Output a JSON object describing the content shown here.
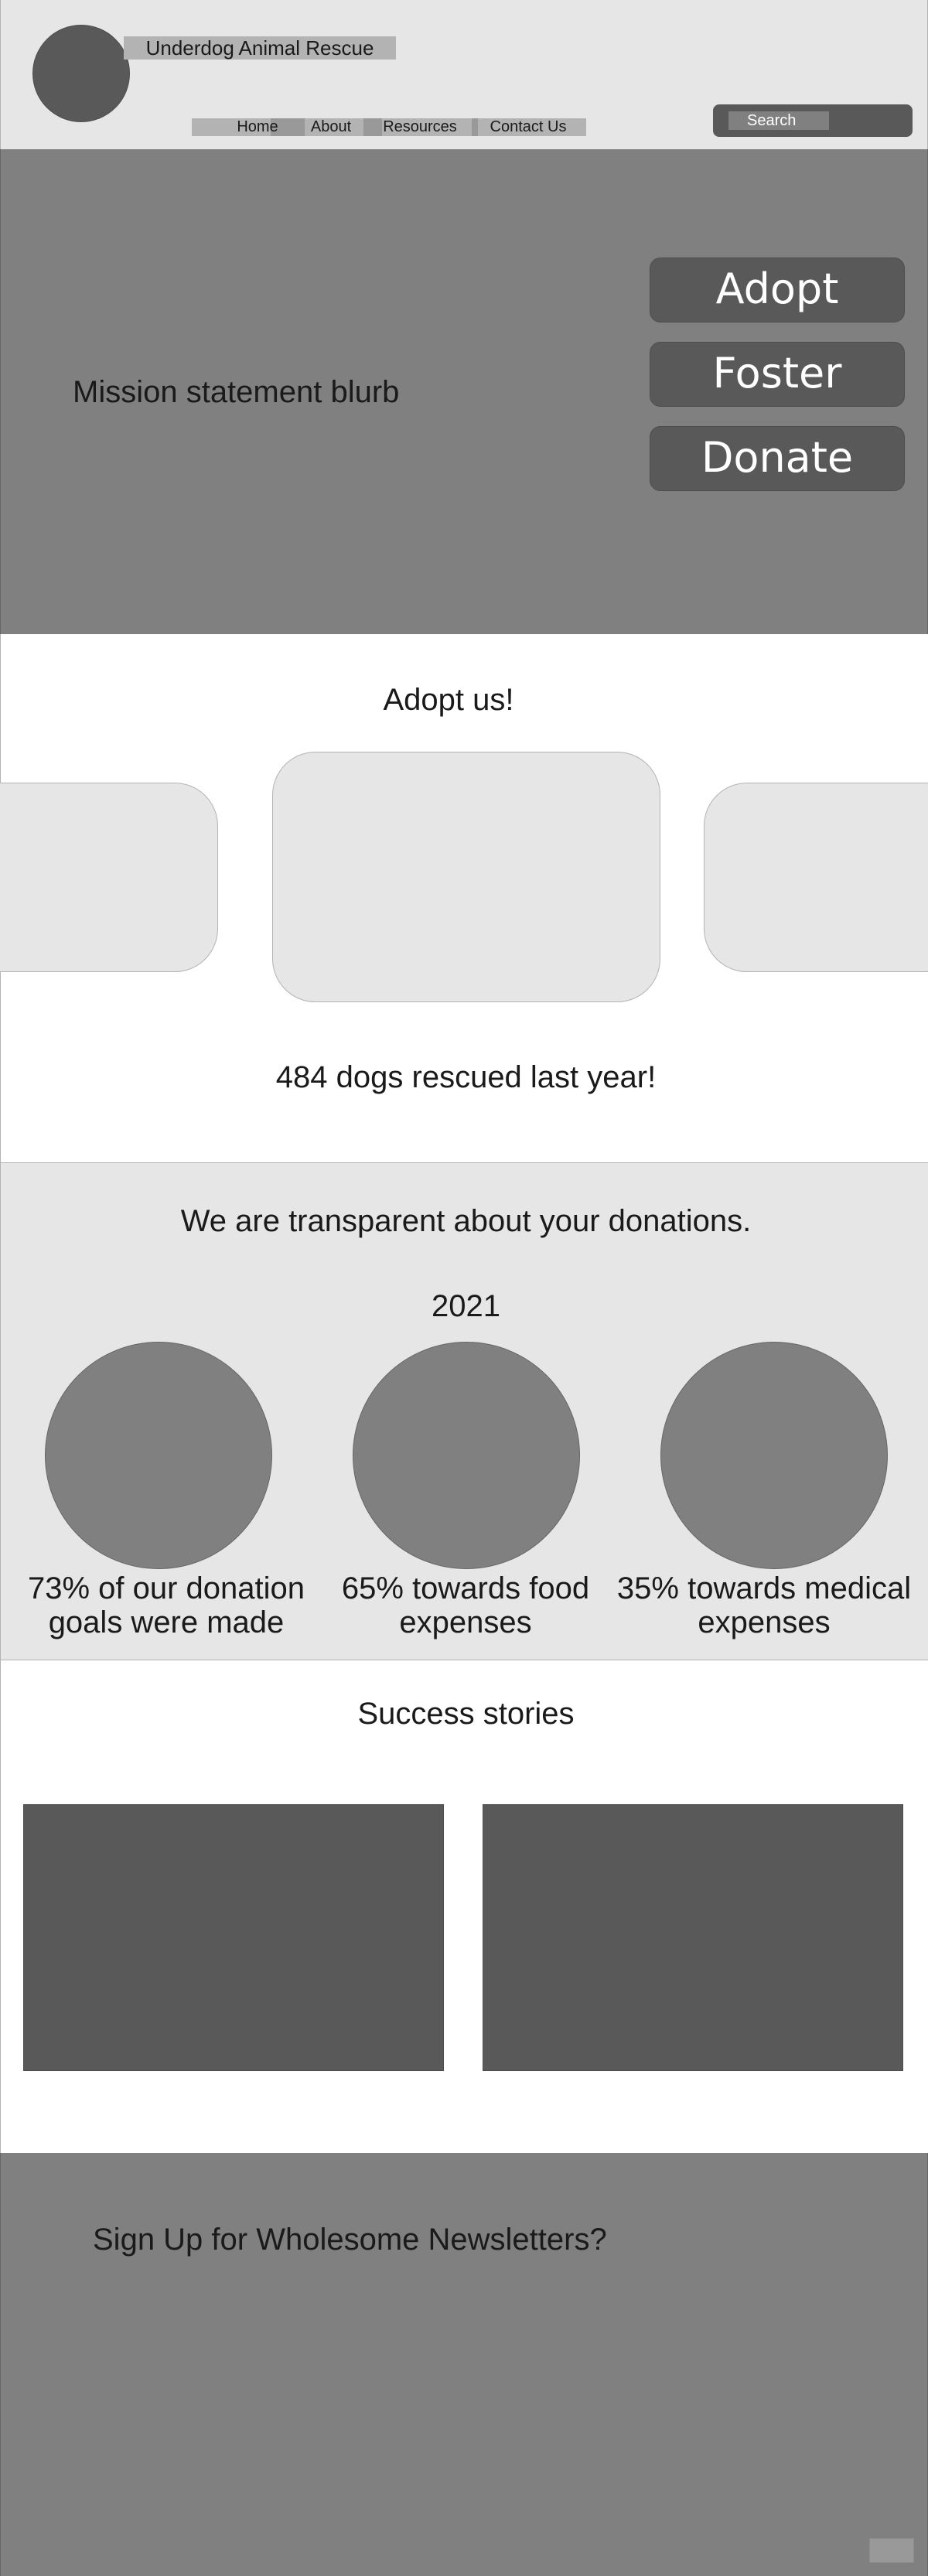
{
  "header": {
    "site_title": "Underdog Animal Rescue",
    "nav": [
      "Home",
      "About",
      "Resources",
      "Contact Us"
    ],
    "search_placeholder": "Search"
  },
  "hero": {
    "mission": "Mission statement blurb",
    "cta": [
      "Adopt",
      "Foster",
      "Donate"
    ]
  },
  "adopt": {
    "title": "Adopt us!",
    "rescued": "484 dogs rescued last year!"
  },
  "transparency": {
    "title": "We are transparent about your donations.",
    "year": "2021",
    "stats": [
      "73% of our donation goals were made",
      "65% towards food expenses",
      "35% towards medical expenses"
    ]
  },
  "success": {
    "title": "Success stories"
  },
  "newsletter": {
    "title": "Sign Up for Wholesome Newsletters?"
  },
  "colors": {
    "light": "#e6e6e6",
    "mid": "#808080",
    "dark": "#595959",
    "accent": "#b3b3b3"
  }
}
